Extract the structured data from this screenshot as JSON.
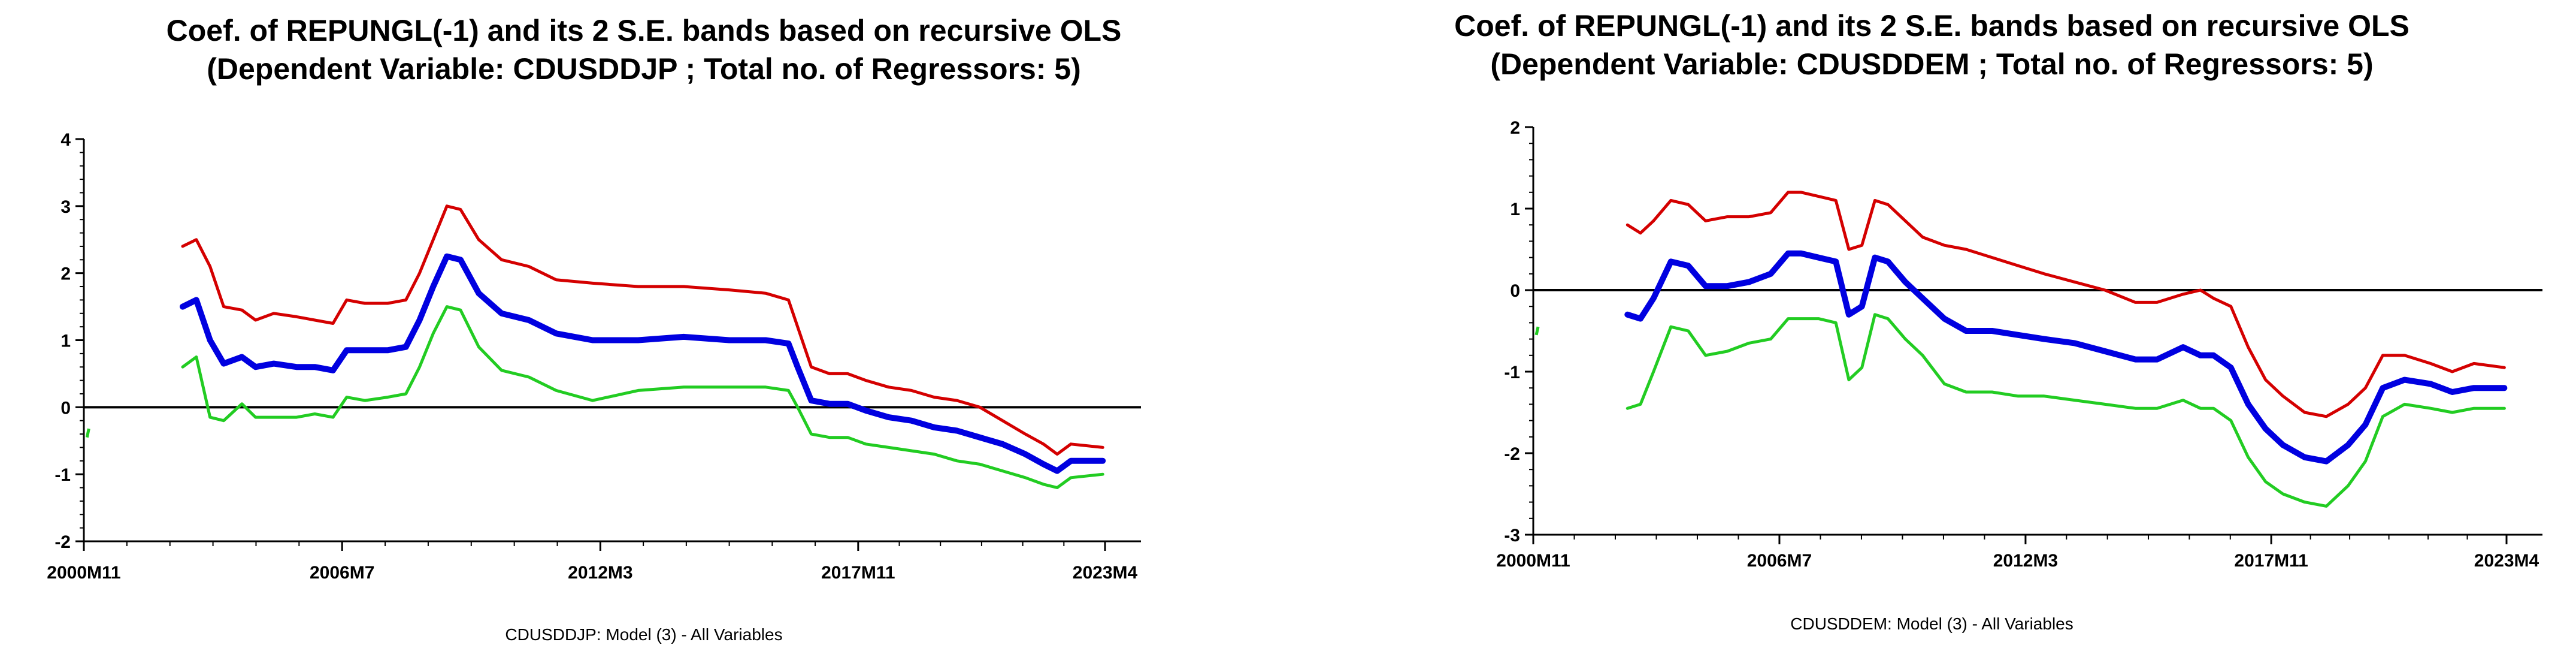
{
  "chart_data": [
    {
      "type": "line",
      "title": "Coef. of REPUNGL(-1) and its 2 S.E. bands based on recursive OLS",
      "subtitle": "(Dependent Variable: CDUSDDJP ; Total no. of Regressors: 5)",
      "caption": "CDUSDDJP: Model (3) - All Variables",
      "xlabel": "",
      "ylabel": "",
      "ylim": [
        -2,
        4
      ],
      "yticks": [
        "-2",
        "-1",
        "0",
        "1",
        "2",
        "3",
        "4"
      ],
      "xlim": [
        2000.83,
        2023.25
      ],
      "xticks": [
        {
          "label": "2000M11",
          "value": 2000.83
        },
        {
          "label": "2006M7",
          "value": 2006.5
        },
        {
          "label": "2012M3",
          "value": 2012.17
        },
        {
          "label": "2017M11",
          "value": 2017.83
        },
        {
          "label": "2023M4",
          "value": 2023.25
        }
      ],
      "zero_line": 0,
      "colors": {
        "upper": "#d40000",
        "coef": "#0000e0",
        "lower": "#22cc22",
        "axis": "#000000"
      },
      "stray_point": {
        "x": 2000.9,
        "y": [
          -0.45,
          -0.32
        ]
      },
      "series": [
        {
          "name": "upper",
          "x": [
            2003.0,
            2003.3,
            2003.6,
            2003.9,
            2004.3,
            2004.6,
            2005.0,
            2005.5,
            2005.9,
            2006.3,
            2006.6,
            2007.0,
            2007.5,
            2007.9,
            2008.2,
            2008.5,
            2008.8,
            2009.1,
            2009.5,
            2010.0,
            2010.6,
            2011.2,
            2012.0,
            2013.0,
            2014.0,
            2015.0,
            2015.8,
            2016.3,
            2016.5,
            2016.8,
            2017.2,
            2017.6,
            2018.0,
            2018.5,
            2019.0,
            2019.5,
            2020.0,
            2020.5,
            2021.0,
            2021.5,
            2021.9,
            2022.2,
            2022.5,
            2023.2
          ],
          "values": [
            2.4,
            2.5,
            2.1,
            1.5,
            1.45,
            1.3,
            1.4,
            1.35,
            1.3,
            1.25,
            1.6,
            1.55,
            1.55,
            1.6,
            2.0,
            2.5,
            3.0,
            2.95,
            2.5,
            2.2,
            2.1,
            1.9,
            1.85,
            1.8,
            1.8,
            1.75,
            1.7,
            1.6,
            1.2,
            0.6,
            0.5,
            0.5,
            0.4,
            0.3,
            0.25,
            0.15,
            0.1,
            0.0,
            -0.2,
            -0.4,
            -0.55,
            -0.7,
            -0.55,
            -0.6
          ]
        },
        {
          "name": "coefficient",
          "x": [
            2003.0,
            2003.3,
            2003.6,
            2003.9,
            2004.3,
            2004.6,
            2005.0,
            2005.5,
            2005.9,
            2006.3,
            2006.6,
            2007.0,
            2007.5,
            2007.9,
            2008.2,
            2008.5,
            2008.8,
            2009.1,
            2009.5,
            2010.0,
            2010.6,
            2011.2,
            2012.0,
            2013.0,
            2014.0,
            2015.0,
            2015.8,
            2016.3,
            2016.5,
            2016.8,
            2017.2,
            2017.6,
            2018.0,
            2018.5,
            2019.0,
            2019.5,
            2020.0,
            2020.5,
            2021.0,
            2021.5,
            2021.9,
            2022.2,
            2022.5,
            2023.2
          ],
          "values": [
            1.5,
            1.6,
            1.0,
            0.65,
            0.75,
            0.6,
            0.65,
            0.6,
            0.6,
            0.55,
            0.85,
            0.85,
            0.85,
            0.9,
            1.3,
            1.8,
            2.25,
            2.2,
            1.7,
            1.4,
            1.3,
            1.1,
            1.0,
            1.0,
            1.05,
            1.0,
            1.0,
            0.95,
            0.6,
            0.1,
            0.05,
            0.05,
            -0.05,
            -0.15,
            -0.2,
            -0.3,
            -0.35,
            -0.45,
            -0.55,
            -0.7,
            -0.85,
            -0.95,
            -0.8,
            -0.8
          ]
        },
        {
          "name": "lower",
          "x": [
            2003.0,
            2003.3,
            2003.6,
            2003.9,
            2004.3,
            2004.6,
            2005.0,
            2005.5,
            2005.9,
            2006.3,
            2006.6,
            2007.0,
            2007.5,
            2007.9,
            2008.2,
            2008.5,
            2008.8,
            2009.1,
            2009.5,
            2010.0,
            2010.6,
            2011.2,
            2012.0,
            2013.0,
            2014.0,
            2015.0,
            2015.8,
            2016.3,
            2016.5,
            2016.8,
            2017.2,
            2017.6,
            2018.0,
            2018.5,
            2019.0,
            2019.5,
            2020.0,
            2020.5,
            2021.0,
            2021.5,
            2021.9,
            2022.2,
            2022.5,
            2023.2
          ],
          "values": [
            0.6,
            0.75,
            -0.15,
            -0.2,
            0.05,
            -0.15,
            -0.15,
            -0.15,
            -0.1,
            -0.15,
            0.15,
            0.1,
            0.15,
            0.2,
            0.6,
            1.1,
            1.5,
            1.45,
            0.9,
            0.55,
            0.45,
            0.25,
            0.1,
            0.25,
            0.3,
            0.3,
            0.3,
            0.25,
            0.0,
            -0.4,
            -0.45,
            -0.45,
            -0.55,
            -0.6,
            -0.65,
            -0.7,
            -0.8,
            -0.85,
            -0.95,
            -1.05,
            -1.15,
            -1.2,
            -1.05,
            -1.0
          ]
        }
      ]
    },
    {
      "type": "line",
      "title": "Coef. of REPUNGL(-1) and its 2 S.E. bands based on recursive OLS",
      "subtitle": "(Dependent Variable: CDUSDDEM ; Total no. of Regressors: 5)",
      "caption": "CDUSDDEM: Model (3) - All Variables",
      "xlabel": "",
      "ylabel": "",
      "ylim": [
        -3,
        2
      ],
      "yticks": [
        "-3",
        "-2",
        "-1",
        "0",
        "1",
        "2"
      ],
      "xlim": [
        2000.83,
        2023.25
      ],
      "xticks": [
        {
          "label": "2000M11",
          "value": 2000.83
        },
        {
          "label": "2006M7",
          "value": 2006.5
        },
        {
          "label": "2012M3",
          "value": 2012.17
        },
        {
          "label": "2017M11",
          "value": 2017.83
        },
        {
          "label": "2023M4",
          "value": 2023.25
        }
      ],
      "zero_line": 0,
      "colors": {
        "upper": "#d40000",
        "coef": "#0000e0",
        "lower": "#22cc22",
        "axis": "#000000"
      },
      "stray_point": {
        "x": 2000.9,
        "y": [
          -0.55,
          -0.45
        ]
      },
      "series": [
        {
          "name": "upper",
          "x": [
            2003.0,
            2003.3,
            2003.6,
            2004.0,
            2004.4,
            2004.8,
            2005.3,
            2005.8,
            2006.3,
            2006.7,
            2007.0,
            2007.4,
            2007.8,
            2008.1,
            2008.4,
            2008.7,
            2009.0,
            2009.4,
            2009.8,
            2010.3,
            2010.8,
            2011.4,
            2012.0,
            2012.6,
            2013.3,
            2014.0,
            2014.7,
            2015.2,
            2015.8,
            2016.2,
            2016.5,
            2016.9,
            2017.3,
            2017.7,
            2018.1,
            2018.6,
            2019.1,
            2019.6,
            2020.0,
            2020.4,
            2020.9,
            2021.5,
            2022.0,
            2022.5,
            2023.2
          ],
          "values": [
            0.8,
            0.7,
            0.85,
            1.1,
            1.05,
            0.85,
            0.9,
            0.9,
            0.95,
            1.2,
            1.2,
            1.15,
            1.1,
            0.5,
            0.55,
            1.1,
            1.05,
            0.85,
            0.65,
            0.55,
            0.5,
            0.4,
            0.3,
            0.2,
            0.1,
            0.0,
            -0.15,
            -0.15,
            -0.05,
            0.0,
            -0.1,
            -0.2,
            -0.7,
            -1.1,
            -1.3,
            -1.5,
            -1.55,
            -1.4,
            -1.2,
            -0.8,
            -0.8,
            -0.9,
            -1.0,
            -0.9,
            -0.95
          ]
        },
        {
          "name": "coefficient",
          "x": [
            2003.0,
            2003.3,
            2003.6,
            2004.0,
            2004.4,
            2004.8,
            2005.3,
            2005.8,
            2006.3,
            2006.7,
            2007.0,
            2007.4,
            2007.8,
            2008.1,
            2008.4,
            2008.7,
            2009.0,
            2009.4,
            2009.8,
            2010.3,
            2010.8,
            2011.4,
            2012.0,
            2012.6,
            2013.3,
            2014.0,
            2014.7,
            2015.2,
            2015.8,
            2016.2,
            2016.5,
            2016.9,
            2017.3,
            2017.7,
            2018.1,
            2018.6,
            2019.1,
            2019.6,
            2020.0,
            2020.4,
            2020.9,
            2021.5,
            2022.0,
            2022.5,
            2023.2
          ],
          "values": [
            -0.3,
            -0.35,
            -0.1,
            0.35,
            0.3,
            0.05,
            0.05,
            0.1,
            0.2,
            0.45,
            0.45,
            0.4,
            0.35,
            -0.3,
            -0.2,
            0.4,
            0.35,
            0.1,
            -0.1,
            -0.35,
            -0.5,
            -0.5,
            -0.55,
            -0.6,
            -0.65,
            -0.75,
            -0.85,
            -0.85,
            -0.7,
            -0.8,
            -0.8,
            -0.95,
            -1.4,
            -1.7,
            -1.9,
            -2.05,
            -2.1,
            -1.9,
            -1.65,
            -1.2,
            -1.1,
            -1.15,
            -1.25,
            -1.2,
            -1.2
          ]
        },
        {
          "name": "lower",
          "x": [
            2003.0,
            2003.3,
            2003.6,
            2004.0,
            2004.4,
            2004.8,
            2005.3,
            2005.8,
            2006.3,
            2006.7,
            2007.0,
            2007.4,
            2007.8,
            2008.1,
            2008.4,
            2008.7,
            2009.0,
            2009.4,
            2009.8,
            2010.3,
            2010.8,
            2011.4,
            2012.0,
            2012.6,
            2013.3,
            2014.0,
            2014.7,
            2015.2,
            2015.8,
            2016.2,
            2016.5,
            2016.9,
            2017.3,
            2017.7,
            2018.1,
            2018.6,
            2019.1,
            2019.6,
            2020.0,
            2020.4,
            2020.9,
            2021.5,
            2022.0,
            2022.5,
            2023.2
          ],
          "values": [
            -1.45,
            -1.4,
            -1.0,
            -0.45,
            -0.5,
            -0.8,
            -0.75,
            -0.65,
            -0.6,
            -0.35,
            -0.35,
            -0.35,
            -0.4,
            -1.1,
            -0.95,
            -0.3,
            -0.35,
            -0.6,
            -0.8,
            -1.15,
            -1.25,
            -1.25,
            -1.3,
            -1.3,
            -1.35,
            -1.4,
            -1.45,
            -1.45,
            -1.35,
            -1.45,
            -1.45,
            -1.6,
            -2.05,
            -2.35,
            -2.5,
            -2.6,
            -2.65,
            -2.4,
            -2.1,
            -1.55,
            -1.4,
            -1.45,
            -1.5,
            -1.45,
            -1.45
          ]
        }
      ]
    }
  ]
}
